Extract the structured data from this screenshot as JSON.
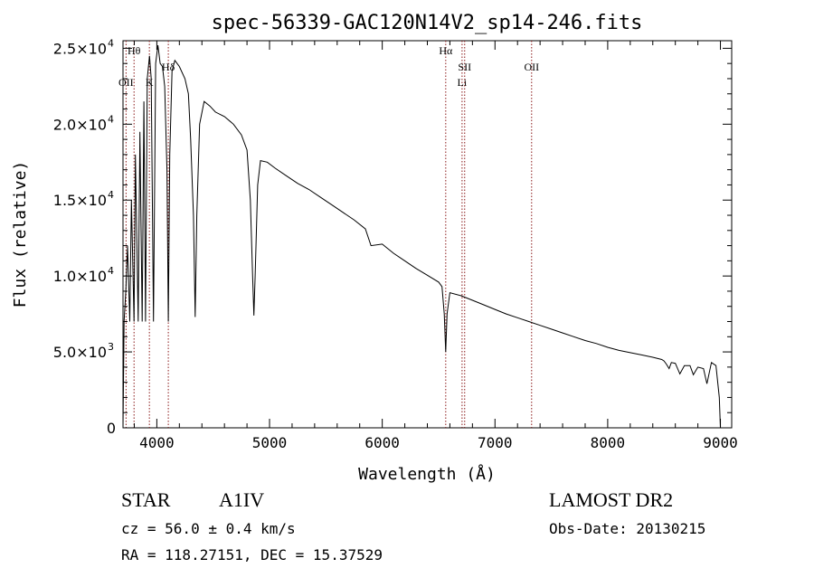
{
  "chart_data": {
    "type": "line",
    "title": "spec-56339-GAC120N14V2_sp14-246.fits",
    "xlabel": "Wavelength (Å)",
    "ylabel": "Flux (relative)",
    "xlim": [
      3700,
      9100
    ],
    "ylim": [
      0,
      25500
    ],
    "x_ticks": [
      4000,
      5000,
      6000,
      7000,
      8000,
      9000
    ],
    "x_tick_labels": [
      "4000",
      "5000",
      "6000",
      "7000",
      "8000",
      "9000"
    ],
    "y_ticks": [
      {
        "value": 0,
        "mantissa": "0",
        "exponent": ""
      },
      {
        "value": 5000,
        "mantissa": "5.0×10",
        "exponent": "3"
      },
      {
        "value": 10000,
        "mantissa": "1.0×10",
        "exponent": "4"
      },
      {
        "value": 15000,
        "mantissa": "1.5×10",
        "exponent": "4"
      },
      {
        "value": 20000,
        "mantissa": "2.0×10",
        "exponent": "4"
      },
      {
        "value": 25000,
        "mantissa": "2.5×10",
        "exponent": "4"
      }
    ],
    "line_color": "#000000",
    "marker_line_color": "#8b1a1a",
    "grid": false,
    "line_markers": [
      {
        "label": "Hθ",
        "wavelength": 3798,
        "row": 0
      },
      {
        "label": "OII",
        "wavelength": 3727,
        "row": 2
      },
      {
        "label": "K",
        "wavelength": 3934,
        "row": 2
      },
      {
        "label": "Hδ",
        "wavelength": 4102,
        "row": 1
      },
      {
        "label": "Hα",
        "wavelength": 6563,
        "row": 0
      },
      {
        "label": "Li",
        "wavelength": 6708,
        "row": 2
      },
      {
        "label": "OII",
        "wavelength": 7325,
        "row": 1
      },
      {
        "label": "SII",
        "wavelength": 6731,
        "row": 1
      }
    ],
    "spectrum": [
      [
        3700,
        0
      ],
      [
        3710,
        7000
      ],
      [
        3725,
        9000
      ],
      [
        3740,
        12000
      ],
      [
        3760,
        7000
      ],
      [
        3775,
        15000
      ],
      [
        3798,
        7000
      ],
      [
        3810,
        18000
      ],
      [
        3835,
        7000
      ],
      [
        3850,
        19500
      ],
      [
        3870,
        7000
      ],
      [
        3885,
        21500
      ],
      [
        3900,
        7000
      ],
      [
        3915,
        23000
      ],
      [
        3935,
        24500
      ],
      [
        3950,
        23000
      ],
      [
        3970,
        7000
      ],
      [
        3990,
        24000
      ],
      [
        4010,
        25200
      ],
      [
        4030,
        24000
      ],
      [
        4050,
        23800
      ],
      [
        4070,
        22500
      ],
      [
        4090,
        17000
      ],
      [
        4102,
        7000
      ],
      [
        4115,
        18000
      ],
      [
        4135,
        23500
      ],
      [
        4160,
        24200
      ],
      [
        4200,
        23800
      ],
      [
        4250,
        23000
      ],
      [
        4280,
        22000
      ],
      [
        4300,
        19000
      ],
      [
        4325,
        14000
      ],
      [
        4340,
        7300
      ],
      [
        4355,
        14000
      ],
      [
        4380,
        20000
      ],
      [
        4420,
        21500
      ],
      [
        4470,
        21200
      ],
      [
        4520,
        20800
      ],
      [
        4600,
        20500
      ],
      [
        4680,
        20000
      ],
      [
        4750,
        19300
      ],
      [
        4800,
        18300
      ],
      [
        4830,
        15000
      ],
      [
        4850,
        10000
      ],
      [
        4861,
        7400
      ],
      [
        4872,
        10000
      ],
      [
        4895,
        16000
      ],
      [
        4920,
        17600
      ],
      [
        4980,
        17500
      ],
      [
        5050,
        17100
      ],
      [
        5150,
        16600
      ],
      [
        5250,
        16100
      ],
      [
        5350,
        15700
      ],
      [
        5450,
        15200
      ],
      [
        5550,
        14700
      ],
      [
        5650,
        14200
      ],
      [
        5750,
        13700
      ],
      [
        5850,
        13100
      ],
      [
        5900,
        12000
      ],
      [
        6000,
        12100
      ],
      [
        6100,
        11500
      ],
      [
        6200,
        11000
      ],
      [
        6300,
        10500
      ],
      [
        6400,
        10050
      ],
      [
        6500,
        9600
      ],
      [
        6530,
        9300
      ],
      [
        6550,
        7500
      ],
      [
        6563,
        5000
      ],
      [
        6575,
        7500
      ],
      [
        6600,
        8900
      ],
      [
        6700,
        8700
      ],
      [
        6800,
        8400
      ],
      [
        6900,
        8100
      ],
      [
        7000,
        7800
      ],
      [
        7100,
        7500
      ],
      [
        7200,
        7250
      ],
      [
        7300,
        7000
      ],
      [
        7400,
        6750
      ],
      [
        7500,
        6500
      ],
      [
        7600,
        6250
      ],
      [
        7700,
        6000
      ],
      [
        7800,
        5750
      ],
      [
        7900,
        5550
      ],
      [
        8000,
        5300
      ],
      [
        8100,
        5100
      ],
      [
        8200,
        4950
      ],
      [
        8300,
        4800
      ],
      [
        8400,
        4650
      ],
      [
        8480,
        4500
      ],
      [
        8500,
        4400
      ],
      [
        8520,
        4200
      ],
      [
        8545,
        3900
      ],
      [
        8565,
        4300
      ],
      [
        8600,
        4250
      ],
      [
        8640,
        3550
      ],
      [
        8680,
        4100
      ],
      [
        8730,
        4100
      ],
      [
        8760,
        3500
      ],
      [
        8800,
        4000
      ],
      [
        8850,
        3900
      ],
      [
        8880,
        2900
      ],
      [
        8920,
        4300
      ],
      [
        8960,
        4100
      ],
      [
        8990,
        2000
      ],
      [
        9000,
        0
      ]
    ]
  },
  "info": {
    "object_type": "STAR",
    "spectral_class": "A1IV",
    "survey": "LAMOST DR2",
    "redshift": "cz = 56.0 ± 0.4 km/s",
    "obs_date": "Obs-Date: 20130215",
    "coordinates": "RA = 118.27151, DEC =  15.37529"
  }
}
